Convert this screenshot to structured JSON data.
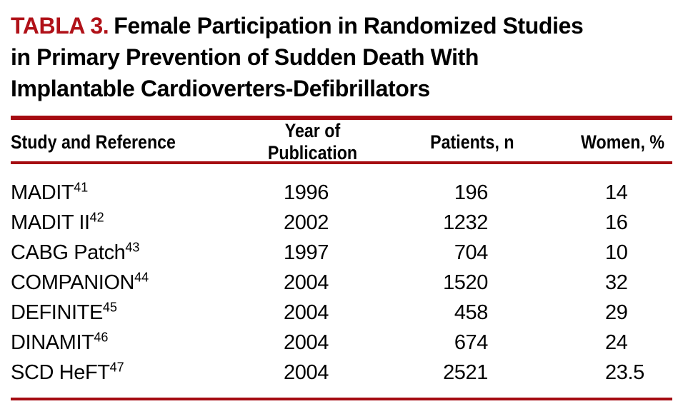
{
  "title": {
    "label": "TABLA 3.",
    "line1": "Female Participation in Randomized Studies",
    "line2": "in Primary Prevention of Sudden Death With",
    "line3": "Implantable Cardioverters-Defibrillators"
  },
  "colors": {
    "accent_label_red": "#b01118",
    "rule_red": "#a50b11",
    "text": "#000000",
    "background": "#ffffff"
  },
  "table": {
    "columns": [
      "Study and Reference",
      "Year of Publication",
      "Patients, n",
      "Women, %"
    ],
    "rows": [
      {
        "study": "MADIT",
        "ref": "41",
        "year": "1996",
        "patients": "196",
        "women": "14"
      },
      {
        "study": "MADIT II",
        "ref": "42",
        "year": "2002",
        "patients": "1232",
        "women": "16"
      },
      {
        "study": "CABG Patch",
        "ref": "43",
        "year": "1997",
        "patients": "704",
        "women": "10"
      },
      {
        "study": "COMPANION",
        "ref": "44",
        "year": "2004",
        "patients": "1520",
        "women": "32"
      },
      {
        "study": "DEFINITE",
        "ref": "45",
        "year": "2004",
        "patients": "458",
        "women": "29"
      },
      {
        "study": "DINAMIT",
        "ref": "46",
        "year": "2004",
        "patients": "674",
        "women": "24"
      },
      {
        "study": "SCD HeFT",
        "ref": "47",
        "year": "2004",
        "patients": "2521",
        "women": "23.5"
      }
    ]
  }
}
